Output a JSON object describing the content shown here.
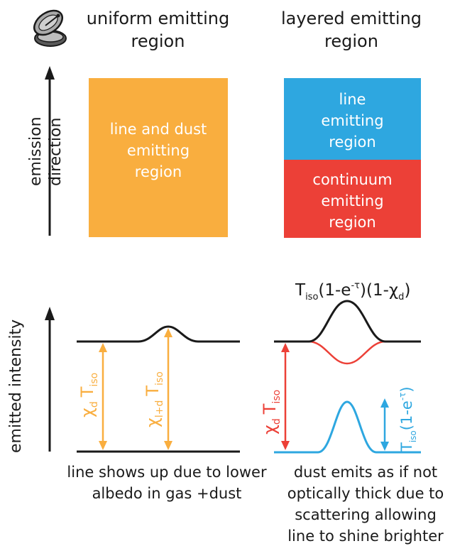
{
  "colors": {
    "orange": "#F9AE3F",
    "blue": "#2EA7E0",
    "red": "#EC4037",
    "black": "#1a1a1a"
  },
  "icons": {
    "dish": "satellite-dish-icon"
  },
  "headers": {
    "uniform_line1": "uniform emitting",
    "uniform_line2": "region",
    "layered_line1": "layered emitting",
    "layered_line2": "region"
  },
  "axes": {
    "emission_line1": "emission",
    "emission_line2": "direction",
    "intensity": "emitted intensity"
  },
  "boxes": {
    "uniform": [
      "line and dust",
      "emitting",
      "region"
    ],
    "line": [
      "line",
      "emitting",
      "region"
    ],
    "continuum": [
      "continuum",
      "emitting",
      "region"
    ]
  },
  "plots": {
    "left_arrow1": {
      "symbol": "χ",
      "sub": "d",
      "T": "T",
      "Tsub": "iso"
    },
    "left_arrow2": {
      "symbol": "χ",
      "sub": "l+d",
      "T": "T",
      "Tsub": "iso"
    },
    "right_arrow1": {
      "symbol": "χ",
      "sub": "d",
      "T": "T",
      "Tsub": "iso"
    },
    "right_arrow2": {
      "T": "T",
      "Tsub": "iso",
      "rest": "(1-e",
      "sup": "-τ",
      "close": ")"
    },
    "formula": {
      "T": "T",
      "Tsub": "iso",
      "a": "(1-e",
      "sup": "-τ",
      "b": ")(1-χ",
      "sub": "d",
      "c": ")"
    }
  },
  "captions": {
    "left": [
      "line shows up due to lower",
      "albedo in gas +dust"
    ],
    "right": [
      "dust emits as if not",
      "optically thick due to",
      "scattering allowing",
      "line to shine brighter"
    ]
  }
}
